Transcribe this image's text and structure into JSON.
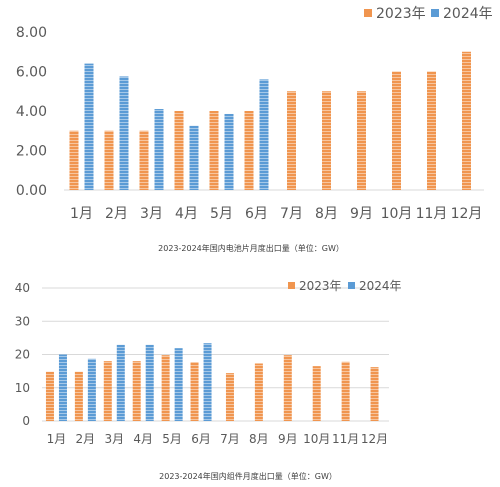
{
  "colors": {
    "series_2023": "#f0954f",
    "series_2024": "#5b9bd5",
    "stripe": "#ffffff"
  },
  "chart_data": [
    {
      "type": "bar",
      "title": "",
      "caption": "2023-2024年国内电池片月度出口量（单位：GW）",
      "xlabel": "",
      "ylabel": "",
      "ylim": [
        0,
        8
      ],
      "y_ticks": [
        "0.00",
        "2.00",
        "4.00",
        "6.00",
        "8.00"
      ],
      "grid": false,
      "legend_position": "top-right",
      "categories": [
        "1月",
        "2月",
        "3月",
        "4月",
        "5月",
        "6月",
        "7月",
        "8月",
        "9月",
        "10月",
        "11月",
        "12月"
      ],
      "series": [
        {
          "name": "2023年",
          "values": [
            3.0,
            3.0,
            3.0,
            4.0,
            4.0,
            4.0,
            5.0,
            5.0,
            5.0,
            6.0,
            6.0,
            7.0
          ]
        },
        {
          "name": "2024年",
          "values": [
            6.4,
            5.75,
            4.1,
            3.25,
            3.85,
            5.6,
            null,
            null,
            null,
            null,
            null,
            null
          ]
        }
      ]
    },
    {
      "type": "bar",
      "title": "",
      "caption": "2023-2024年国内组件月度出口量（单位：GW）",
      "xlabel": "",
      "ylabel": "",
      "ylim": [
        0,
        40
      ],
      "y_ticks": [
        "0",
        "10",
        "20",
        "30",
        "40"
      ],
      "grid": true,
      "legend_position": "top-right",
      "categories": [
        "1月",
        "2月",
        "3月",
        "4月",
        "5月",
        "6月",
        "7月",
        "8月",
        "9月",
        "10月",
        "11月",
        "12月"
      ],
      "series": [
        {
          "name": "2023年",
          "values": [
            14.8,
            14.8,
            18.0,
            18.0,
            19.8,
            17.7,
            14.4,
            17.3,
            19.8,
            16.5,
            17.8,
            16.2
          ]
        },
        {
          "name": "2024年",
          "values": [
            20.0,
            18.7,
            22.9,
            22.9,
            21.9,
            23.4,
            null,
            null,
            null,
            null,
            null,
            null
          ]
        }
      ]
    }
  ]
}
